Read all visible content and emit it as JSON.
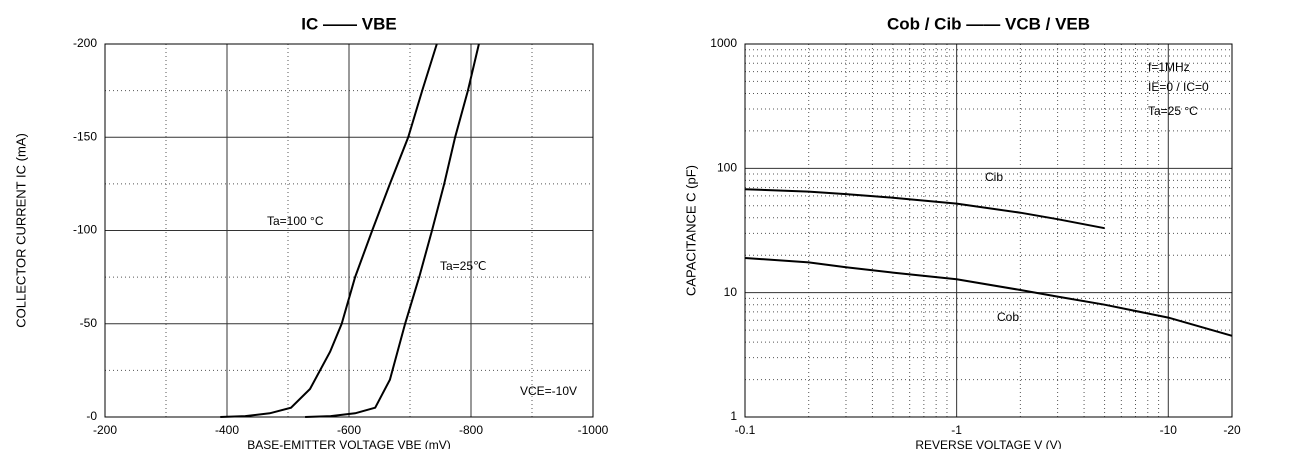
{
  "chart_data": [
    {
      "type": "line",
      "title": "IC —— VBE",
      "xlabel": "BASE-EMITTER VOLTAGE VBE (mV)",
      "ylabel": "COLLECTOR CURRENT IC (mA)",
      "xlim": [
        -200,
        -1000
      ],
      "xticks": [
        -200,
        -400,
        -600,
        -800,
        -1000
      ],
      "xminor": [
        -300,
        -500,
        -700,
        -900
      ],
      "ylim": [
        0,
        -200
      ],
      "yticks": [
        {
          "value": 0,
          "label": "-0"
        },
        -50,
        -100,
        -150,
        -200
      ],
      "yminor": [
        -25,
        -75,
        -125,
        -175
      ],
      "grid": true,
      "series": [
        {
          "name": "Ta=100 °C",
          "color": "#000000",
          "x": [
            -389,
            -430,
            -470,
            -505,
            -536,
            -569,
            -588,
            -610,
            -638,
            -667,
            -697,
            -720,
            -744
          ],
          "values": [
            0,
            -0.5,
            -2,
            -5,
            -15,
            -35,
            -50,
            -75,
            -100,
            -125,
            -150,
            -175,
            -200
          ]
        },
        {
          "name": "Ta=25℃",
          "color": "#000000",
          "x": [
            -528,
            -570,
            -610,
            -643,
            -667,
            -692,
            -715,
            -736,
            -756,
            -774,
            -795,
            -813
          ],
          "values": [
            0,
            -0.5,
            -2,
            -5,
            -20,
            -50,
            -75,
            -100,
            -125,
            -150,
            -175,
            -200
          ]
        }
      ],
      "annotations": [
        "VCE=-10V"
      ]
    },
    {
      "type": "line",
      "title": "Cob / Cib —— VCB / VEB",
      "xlabel": "REVERSE VOLTAGE V (V)",
      "ylabel": "CAPACITANCE C (pF)",
      "xscale": "log",
      "yscale": "log",
      "xlim": [
        -0.1,
        -20
      ],
      "xticks": [
        -0.1,
        -1,
        -10,
        -20
      ],
      "xminor": [
        -0.2,
        -0.3,
        -0.4,
        -0.5,
        -0.6,
        -0.7,
        -0.8,
        -0.9,
        -2,
        -3,
        -4,
        -5,
        -6,
        -7,
        -8,
        -9
      ],
      "ylim": [
        1,
        1000
      ],
      "yticks": [
        1,
        10,
        100,
        1000
      ],
      "yminor": [
        2,
        3,
        4,
        5,
        6,
        7,
        8,
        9,
        20,
        30,
        40,
        50,
        60,
        70,
        80,
        90,
        200,
        300,
        400,
        500,
        600,
        700,
        800,
        900
      ],
      "grid": true,
      "series": [
        {
          "name": "Cib",
          "color": "#000000",
          "x": [
            -0.1,
            -0.2,
            -0.3,
            -0.5,
            -1,
            -2,
            -3,
            -5
          ],
          "values": [
            68,
            65,
            62,
            58,
            52,
            44,
            39,
            33
          ]
        },
        {
          "name": "Cob",
          "color": "#000000",
          "x": [
            -0.1,
            -0.2,
            -0.3,
            -0.5,
            -1,
            -2,
            -3,
            -5,
            -10,
            -20
          ],
          "values": [
            19,
            17.5,
            16,
            14.5,
            12.8,
            10.5,
            9.3,
            8,
            6.3,
            4.5
          ]
        }
      ],
      "annotations": [
        "f=1MHz",
        "IE=0 / IC=0",
        "Ta=25 °C"
      ]
    }
  ]
}
